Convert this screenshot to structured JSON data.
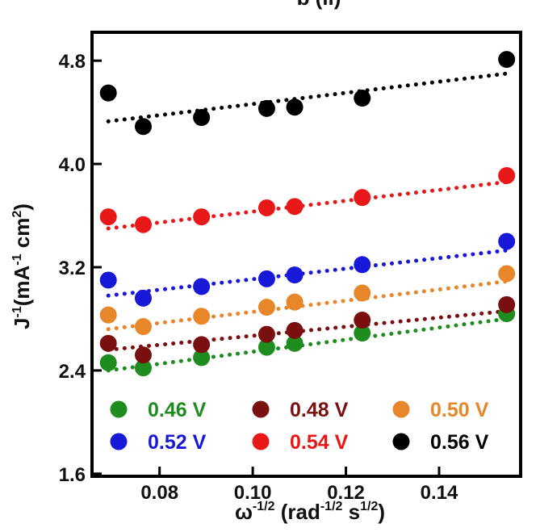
{
  "chart_data": {
    "type": "scatter",
    "panel_label": "b (ii)",
    "xlabel": {
      "base": "ω",
      "base_sup": "-1/2",
      "unit_open": " (rad",
      "unit_sup1": "-1/2",
      "unit_mid": " s",
      "unit_sup2": "1/2",
      "unit_close": ")"
    },
    "ylabel": {
      "base": "J",
      "base_sup": "-1",
      "unit_open": "(mA",
      "unit_sup1": "-1",
      "unit_mid": " cm",
      "unit_sup2": "2",
      "unit_close": ")"
    },
    "xlim": [
      0.0655,
      0.1575
    ],
    "ylim": [
      1.58,
      5.02
    ],
    "xticks": [
      0.08,
      0.1,
      0.12,
      0.14
    ],
    "xtick_labels": [
      "0.08",
      "0.10",
      "0.12",
      "0.14"
    ],
    "yticks": [
      1.6,
      2.4,
      3.2,
      4.0,
      4.8
    ],
    "ytick_labels": [
      "1.6",
      "2.4",
      "3.2",
      "4.0",
      "4.8"
    ],
    "grid": false,
    "legend_position": "bottom, inside plot (3 columns)",
    "series": [
      {
        "name": "0.46 V",
        "color": "#1e8c1e",
        "x": [
          0.069,
          0.0765,
          0.089,
          0.103,
          0.109,
          0.1235,
          0.1545
        ],
        "y": [
          2.46,
          2.42,
          2.5,
          2.58,
          2.61,
          2.69,
          2.84
        ],
        "fit": [
          [
            0.069,
            2.4
          ],
          [
            0.1545,
            2.8
          ]
        ]
      },
      {
        "name": "0.48 V",
        "color": "#7a0f0f",
        "x": [
          0.069,
          0.0765,
          0.089,
          0.103,
          0.109,
          0.1235,
          0.1545
        ],
        "y": [
          2.61,
          2.52,
          2.6,
          2.68,
          2.71,
          2.79,
          2.91
        ],
        "fit": [
          [
            0.069,
            2.56
          ],
          [
            0.1545,
            2.86
          ]
        ]
      },
      {
        "name": "0.50 V",
        "color": "#e8862a",
        "x": [
          0.069,
          0.0765,
          0.089,
          0.103,
          0.109,
          0.1235,
          0.1545
        ],
        "y": [
          2.83,
          2.74,
          2.82,
          2.89,
          2.93,
          3.0,
          3.15
        ],
        "fit": [
          [
            0.069,
            2.72
          ],
          [
            0.1545,
            3.09
          ]
        ]
      },
      {
        "name": "0.52 V",
        "color": "#1818d8",
        "x": [
          0.069,
          0.0765,
          0.089,
          0.103,
          0.109,
          0.1235,
          0.1545
        ],
        "y": [
          3.1,
          2.96,
          3.05,
          3.11,
          3.14,
          3.22,
          3.4
        ],
        "fit": [
          [
            0.069,
            2.98
          ],
          [
            0.1545,
            3.33
          ]
        ]
      },
      {
        "name": "0.54 V",
        "color": "#e81818",
        "x": [
          0.069,
          0.0765,
          0.089,
          0.103,
          0.109,
          0.1235,
          0.1545
        ],
        "y": [
          3.59,
          3.53,
          3.59,
          3.66,
          3.67,
          3.74,
          3.91
        ],
        "fit": [
          [
            0.069,
            3.5
          ],
          [
            0.1545,
            3.86
          ]
        ]
      },
      {
        "name": "0.56 V",
        "color": "#000000",
        "x": [
          0.069,
          0.0765,
          0.089,
          0.103,
          0.109,
          0.1235,
          0.1545
        ],
        "y": [
          4.55,
          4.29,
          4.36,
          4.43,
          4.44,
          4.51,
          4.81
        ],
        "fit": [
          [
            0.069,
            4.33
          ],
          [
            0.1545,
            4.7
          ]
        ]
      }
    ]
  }
}
